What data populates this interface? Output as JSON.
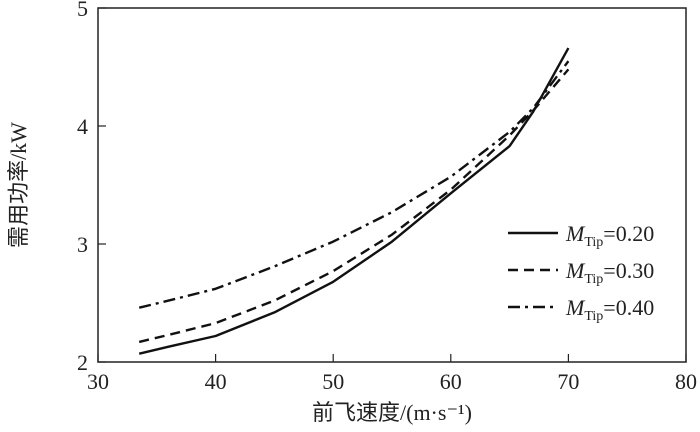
{
  "chart_data": {
    "type": "line",
    "xlabel": "前飞速度/(m·s⁻¹)",
    "ylabel": "需用功率/kW",
    "xlim": [
      30,
      80
    ],
    "ylim": [
      2,
      5
    ],
    "xticks": [
      "30",
      "40",
      "50",
      "60",
      "70",
      "80"
    ],
    "yticks": [
      "2",
      "3",
      "4",
      "5"
    ],
    "legend_position": "right",
    "series": [
      {
        "name": "M_Tip=0.20",
        "legend_symbol": "M",
        "legend_sub": "Tip",
        "legend_value": "=0.20",
        "dash": "solid",
        "x": [
          33.5,
          36,
          40,
          45,
          50,
          55,
          60,
          65,
          67,
          70
        ],
        "y": [
          2.07,
          2.13,
          2.22,
          2.42,
          2.68,
          3.02,
          3.43,
          3.83,
          4.12,
          4.66
        ]
      },
      {
        "name": "M_Tip=0.30",
        "legend_symbol": "M",
        "legend_sub": "Tip",
        "legend_value": "=0.30",
        "dash": "dashed",
        "x": [
          33.5,
          36,
          40,
          45,
          50,
          55,
          60,
          65,
          67,
          70
        ],
        "y": [
          2.17,
          2.23,
          2.33,
          2.52,
          2.77,
          3.08,
          3.46,
          3.92,
          4.13,
          4.48
        ]
      },
      {
        "name": "M_Tip=0.40",
        "legend_symbol": "M",
        "legend_sub": "Tip",
        "legend_value": "=0.40",
        "dash": "dashdot",
        "x": [
          33.5,
          36,
          40,
          45,
          50,
          55,
          60,
          65,
          67,
          70
        ],
        "y": [
          2.46,
          2.52,
          2.62,
          2.81,
          3.02,
          3.27,
          3.57,
          3.95,
          4.15,
          4.55
        ]
      }
    ]
  },
  "colors": {
    "line": "#111111",
    "axis": "#222222"
  }
}
